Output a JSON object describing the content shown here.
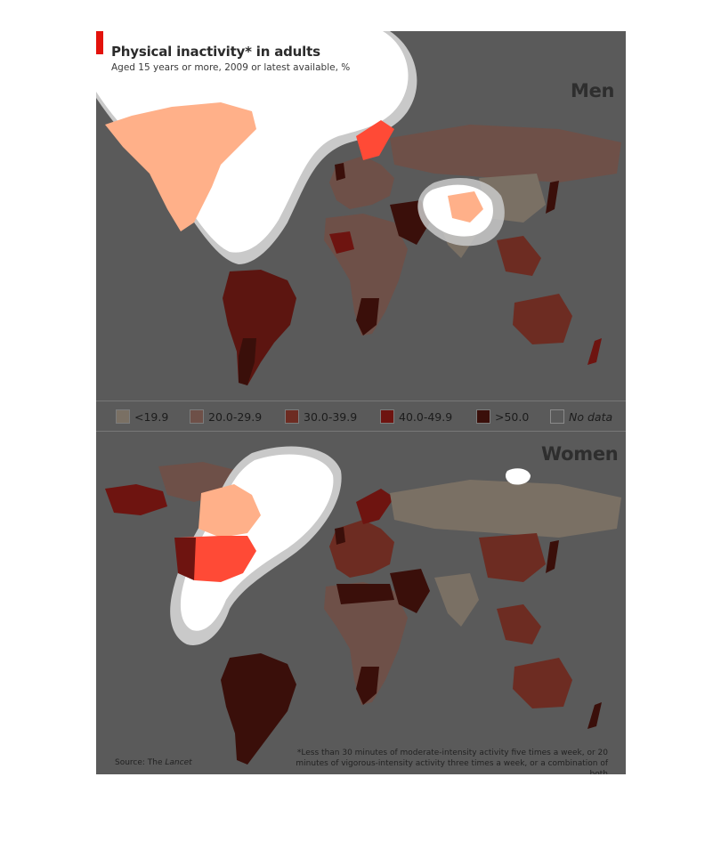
{
  "figure": {
    "title": "Physical inactivity* in adults",
    "subtitle": "Aged 15 years or more, 2009 or latest available, %",
    "source_prefix": "Source: The ",
    "source_italic": "Lancet",
    "footnote": "*Less than 30 minutes of moderate-intensity activity five times a week, or 20 minutes of vigorous-intensity activity three times a week, or a combination of both"
  },
  "maps": {
    "men_label": "Men",
    "women_label": "Women"
  },
  "legend": {
    "items": [
      {
        "label": "<19.9",
        "color": "#7a7064",
        "italic": false
      },
      {
        "label": "20.0-29.9",
        "color": "#6e5048",
        "italic": false
      },
      {
        "label": "30.0-39.9",
        "color": "#6d2c22",
        "italic": false
      },
      {
        "label": "40.0-49.9",
        "color": "#6e1410",
        "italic": false
      },
      {
        "label": ">50.0",
        "color": "#3a0f0a",
        "italic": false
      },
      {
        "label": "No data",
        "color": "#5a5a5a",
        "italic": true
      }
    ]
  },
  "colors": {
    "background": "#5a5a5a",
    "highlight_light": "#ffb089",
    "highlight_red": "#ff4a36",
    "accent": "#e3120b"
  }
}
